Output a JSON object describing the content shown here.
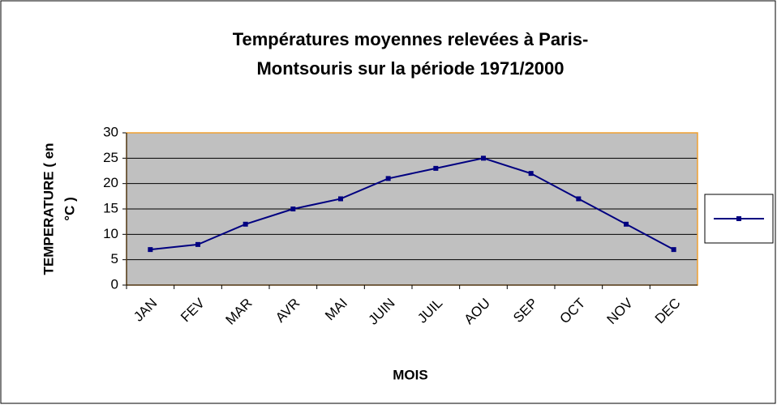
{
  "chart_data": {
    "type": "line",
    "title": [
      "Températures moyennes relevées à Paris-",
      "Montsouris sur la période 1971/2000"
    ],
    "x_label": "MOIS",
    "y_label": [
      "TEMPERATURE ( en",
      "°C )"
    ],
    "categories": [
      "JAN",
      "FEV",
      "MAR",
      "AVR",
      "MAI",
      "JUIN",
      "JUIL",
      "AOU",
      "SEP",
      "OCT",
      "NOV",
      "DEC"
    ],
    "series": [
      {
        "color": "#000080",
        "values": [
          7,
          8,
          12,
          15,
          17,
          21,
          23,
          25,
          22,
          17,
          12,
          7
        ]
      }
    ],
    "ylim": [
      0,
      30
    ],
    "yticks": [
      0,
      5,
      10,
      15,
      20,
      25,
      30
    ],
    "grid": true,
    "legend": "right"
  }
}
